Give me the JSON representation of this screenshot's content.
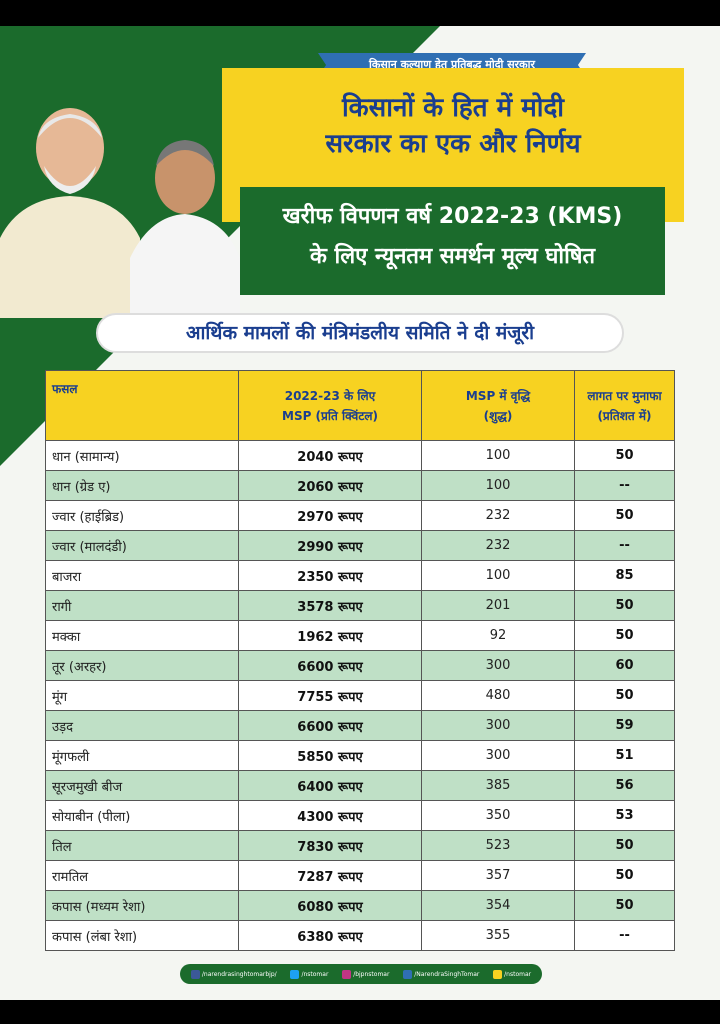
{
  "header": {
    "ribbon": "किसान कल्याण हेतु प्रतिबद्ध मोदी सरकार",
    "title_line1": "किसानों के हित में मोदी",
    "title_line2": "सरकार का एक और निर्णय",
    "sub_line1": "खरीफ विपणन वर्ष 2022-23 (KMS)",
    "sub_line2": "के लिए न्यूनतम समर्थन मूल्य घोषित",
    "pill": "आर्थिक मामलों की मंत्रिमंडलीय समिति ने दी मंजूरी"
  },
  "table": {
    "headers": [
      [
        "फसल",
        ""
      ],
      [
        "2022-23 के लिए",
        "MSP (प्रति क्विंटल)"
      ],
      [
        "MSP में वृद्धि",
        "(शुद्ध)"
      ],
      [
        "लागत पर मुनाफा",
        "(प्रतिशत में)"
      ]
    ],
    "rows": [
      [
        "धान (सामान्य)",
        "2040 रूपए",
        "100",
        "50"
      ],
      [
        "धान (ग्रेड ए)",
        "2060 रूपए",
        "100",
        "--"
      ],
      [
        "ज्वार (हाईब्रिड)",
        "2970 रूपए",
        "232",
        "50"
      ],
      [
        "ज्वार (मालदंडी)",
        "2990 रूपए",
        "232",
        "--"
      ],
      [
        "बाजरा",
        "2350 रूपए",
        "100",
        "85"
      ],
      [
        "रागी",
        "3578 रूपए",
        "201",
        "50"
      ],
      [
        "मक्का",
        "1962 रूपए",
        "92",
        "50"
      ],
      [
        "तूर (अरहर)",
        "6600 रूपए",
        "300",
        "60"
      ],
      [
        "मूंग",
        "7755 रूपए",
        "480",
        "50"
      ],
      [
        "उड़द",
        "6600 रूपए",
        "300",
        "59"
      ],
      [
        "मूंगफली",
        "5850 रूपए",
        "300",
        "51"
      ],
      [
        "सूरजमुखी बीज",
        "6400 रूपए",
        "385",
        "56"
      ],
      [
        "सोयाबीन (पीला)",
        "4300 रूपए",
        "350",
        "53"
      ],
      [
        "तिल",
        "7830 रूपए",
        "523",
        "50"
      ],
      [
        "रामतिल",
        "7287 रूपए",
        "357",
        "50"
      ],
      [
        "कपास (मध्यम रेशा)",
        "6080 रूपए",
        "354",
        "50"
      ],
      [
        "कपास (लंबा रेशा)",
        "6380 रूपए",
        "355",
        "--"
      ]
    ]
  },
  "footer": [
    {
      "icon": "facebook-icon",
      "color": "#3b5998",
      "text": "/narendrasinghtomarbjp/"
    },
    {
      "icon": "twitter-icon",
      "color": "#1da1f2",
      "text": "/nstomar"
    },
    {
      "icon": "instagram-icon",
      "color": "#c13584",
      "text": "/bjpnstomar"
    },
    {
      "icon": "koo-icon",
      "color": "#2f6fb3",
      "text": "/NarendraSinghTomar"
    },
    {
      "icon": "koo-bird-icon",
      "color": "#f7d221",
      "text": "/nstomar"
    }
  ]
}
